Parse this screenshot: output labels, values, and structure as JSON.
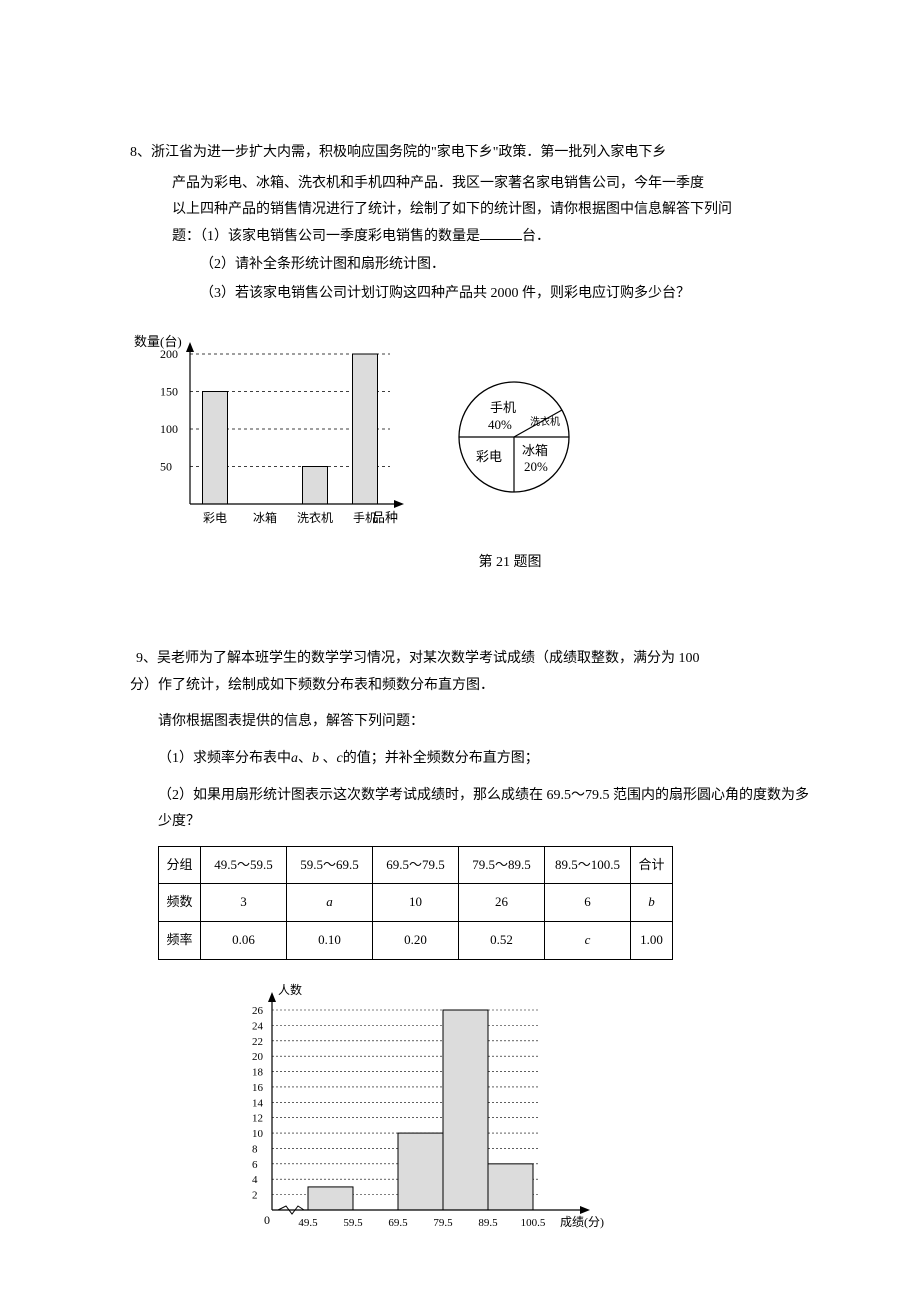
{
  "q8": {
    "header": "8、浙江省为进一步扩大内需，积极响应国务院的\"家电下乡\"政策．第一批列入家电下乡",
    "line2": "产品为彩电、冰箱、洗衣机和手机四种产品．我区一家著名家电销售公司，今年一季度",
    "line3": "以上四种产品的销售情况进行了统计，绘制了如下的统计图，请你根据图中信息解答下列问",
    "line4_a": "题：（1）该家电销售公司一季度彩电销售的数量是",
    "line4_b": "台．",
    "sub2": "（2）请补全条形统计图和扇形统计图．",
    "sub3": "（3）若该家电销售公司计划订购这四种产品共 2000 件，则彩电应订购多少台？",
    "caption": "第 21 题图"
  },
  "barChart": {
    "ylabel": "数量(台)",
    "xlabel": "品种",
    "yticks": [
      50,
      100,
      150,
      200
    ],
    "categories": [
      "彩电",
      "冰箱",
      "洗衣机",
      "手机"
    ],
    "values": [
      150,
      null,
      50,
      200
    ],
    "bar_fill": "#dcdcdc",
    "bar_stroke": "#000000",
    "grid_dash": "3,3",
    "axis_stroke": "#000000"
  },
  "pieChart": {
    "labels": {
      "phone": "手机",
      "phone_pct": "40%",
      "washer": "洗衣机",
      "tv": "彩电",
      "fridge": "冰箱",
      "fridge_pct": "20%"
    },
    "stroke": "#000000",
    "fill": "#ffffff"
  },
  "q9": {
    "header": "9、吴老师为了解本班学生的数学学习情况，对某次数学考试成绩（成绩取整数，满分为 100",
    "line2": "分）作了统计，绘制成如下频数分布表和频数分布直方图．",
    "line3": "请你根据图表提供的信息，解答下列问题：",
    "sub1_a": "（1）求频率分布表中",
    "sub1_b": "、",
    "sub1_c": " 、",
    "sub1_d": "的值；并补全频数分布直方图；",
    "sub2": "（2）如果用扇形统计图表示这次数学考试成绩时，那么成绩在 69.5～79.5 范围内的扇形圆心角的度数为多少度？",
    "var_a": "a",
    "var_b": "b",
    "var_c": "c"
  },
  "freqTable": {
    "headers": [
      "分组",
      "49.5～59.5",
      "59.5～69.5",
      "69.5～79.5",
      "79.5～89.5",
      "89.5～100.5",
      "合计"
    ],
    "row_freq_label": "频数",
    "row_freq": [
      "3",
      "a",
      "10",
      "26",
      "6",
      "b"
    ],
    "row_rate_label": "频率",
    "row_rate": [
      "0.06",
      "0.10",
      "0.20",
      "0.52",
      "c",
      "1.00"
    ]
  },
  "histogram": {
    "ylabel": "人数",
    "xlabel": "成绩(分)",
    "yticks": [
      0,
      2,
      4,
      6,
      8,
      10,
      12,
      14,
      16,
      18,
      20,
      22,
      24,
      26
    ],
    "xticks": [
      "49.5",
      "59.5",
      "69.5",
      "79.5",
      "89.5",
      "100.5"
    ],
    "bars": [
      {
        "x0": "49.5",
        "x1": "59.5",
        "h": 3
      },
      {
        "x0": "69.5",
        "x1": "79.5",
        "h": 10
      },
      {
        "x0": "79.5",
        "x1": "89.5",
        "h": 26
      },
      {
        "x0": "89.5",
        "x1": "100.5",
        "h": 6
      }
    ],
    "bar_fill": "#dcdcdc",
    "bar_stroke": "#000000",
    "grid_dash": "2,2"
  }
}
